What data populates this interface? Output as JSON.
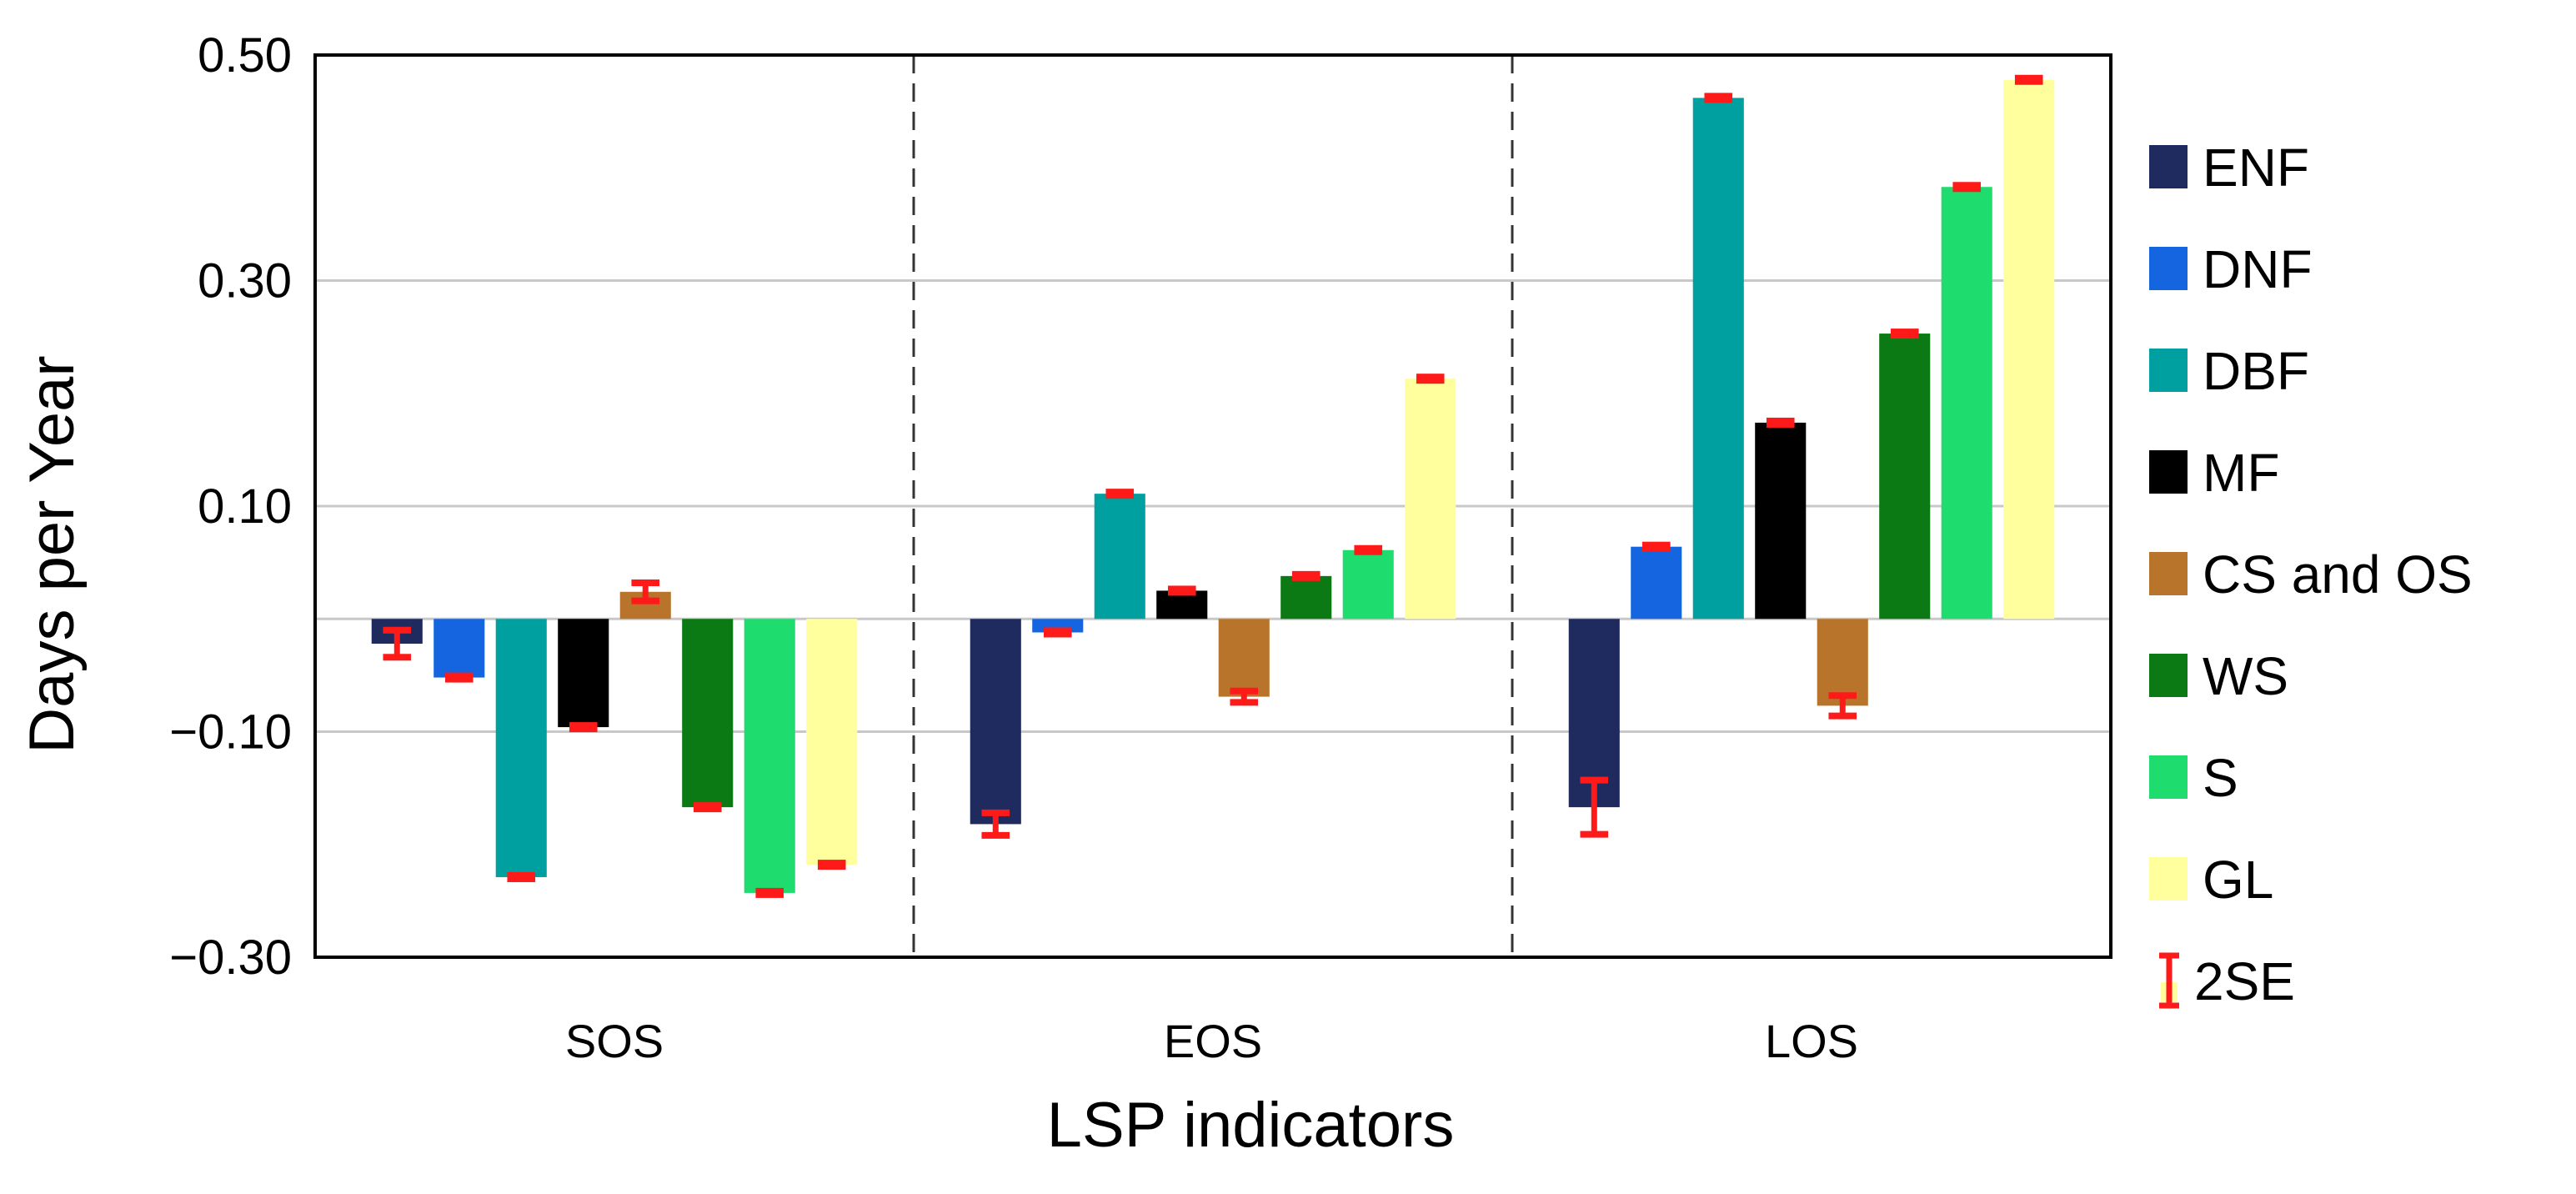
{
  "chart_data": {
    "type": "bar",
    "title": "",
    "xlabel": "LSP indicators",
    "ylabel": "Days per Year",
    "ylim": [
      -0.3,
      0.5
    ],
    "yticks": [
      {
        "value": 0.5,
        "label": "0.50"
      },
      {
        "value": 0.3,
        "label": "0.30"
      },
      {
        "value": 0.1,
        "label": "0.10"
      },
      {
        "value": -0.1,
        "label": "−0.10"
      },
      {
        "value": -0.3,
        "label": "−0.30"
      }
    ],
    "grid": true,
    "legend_position": "right",
    "categories": [
      "SOS",
      "EOS",
      "LOS"
    ],
    "series": [
      {
        "name": "ENF",
        "color": "#1f2a5e",
        "values": [
          -0.022,
          -0.182,
          -0.167
        ],
        "se2": [
          0.012,
          0.01,
          0.024
        ]
      },
      {
        "name": "DNF",
        "color": "#1565e0",
        "values": [
          -0.052,
          -0.012,
          0.064
        ],
        "se2": [
          0.002,
          0.002,
          0.002
        ]
      },
      {
        "name": "DBF",
        "color": "#00a0a0",
        "values": [
          -0.229,
          0.111,
          0.462
        ],
        "se2": [
          0.002,
          0.002,
          0.002
        ]
      },
      {
        "name": "MF",
        "color": "#000000",
        "values": [
          -0.096,
          0.025,
          0.174
        ],
        "se2": [
          0.002,
          0.002,
          0.002
        ]
      },
      {
        "name": "CS and OS",
        "color": "#b8742a",
        "values": [
          0.024,
          -0.069,
          -0.077
        ],
        "se2": [
          0.008,
          0.005,
          0.009
        ]
      },
      {
        "name": "WS",
        "color": "#0b7a14",
        "values": [
          -0.167,
          0.038,
          0.253
        ],
        "se2": [
          0.002,
          0.002,
          0.002
        ]
      },
      {
        "name": "S",
        "color": "#1edc6e",
        "values": [
          -0.243,
          0.061,
          0.383
        ],
        "se2": [
          0.002,
          0.002,
          0.002
        ]
      },
      {
        "name": "GL",
        "color": "#ffff9e",
        "values": [
          -0.218,
          0.213,
          0.478
        ],
        "se2": [
          0.002,
          0.002,
          0.002
        ]
      }
    ],
    "error_bar_label": "2SE",
    "error_bar_color": "#ff1a1a"
  }
}
